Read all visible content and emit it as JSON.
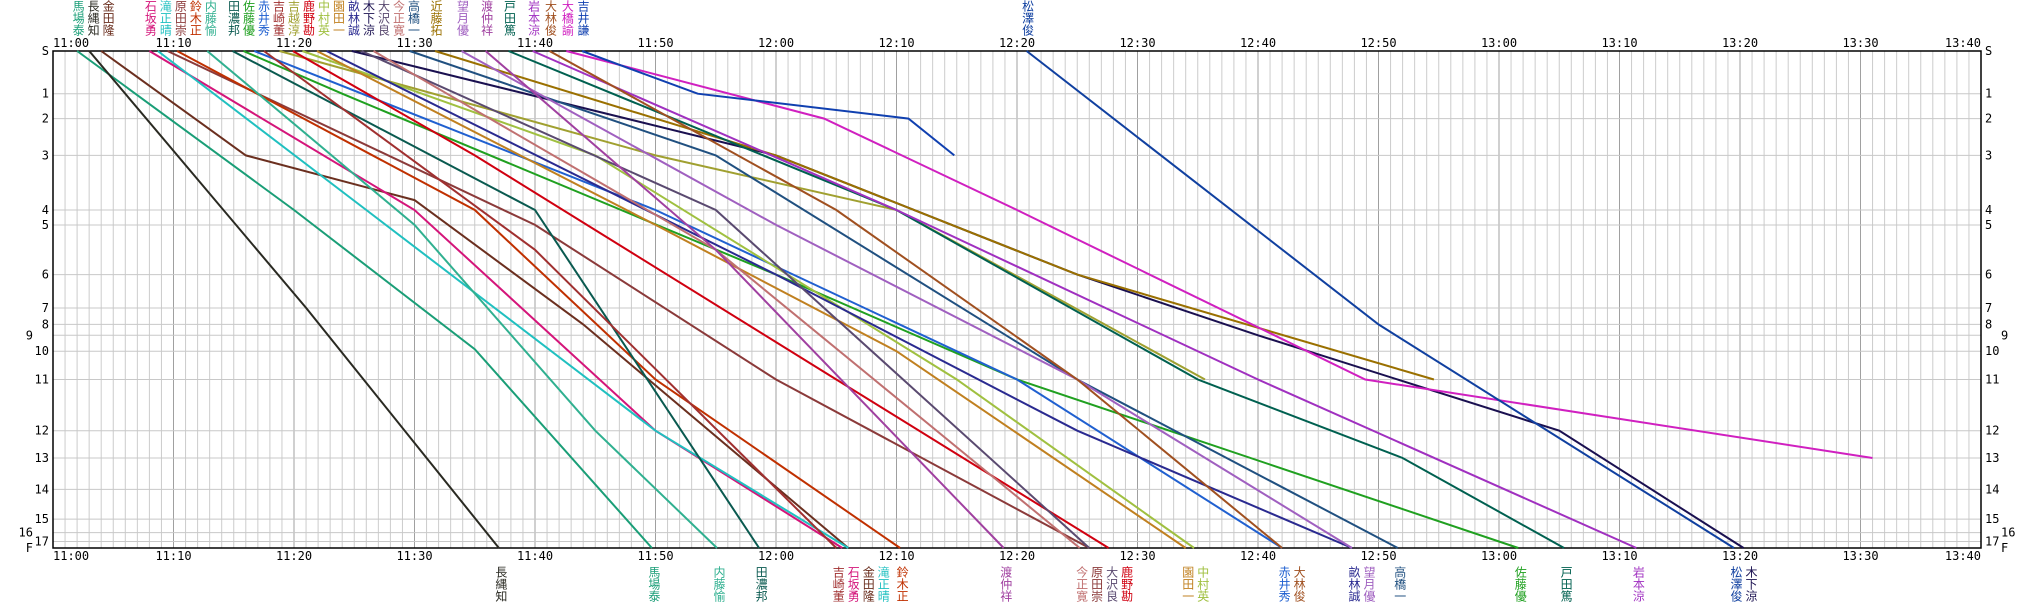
{
  "chart_data": {
    "type": "line",
    "title": "",
    "xlabel": "",
    "ylabel": "",
    "x_unit": "minutes after 11:00",
    "xlim": [
      0,
      160
    ],
    "x_ticks": [
      "11:00",
      "11:10",
      "11:20",
      "11:30",
      "11:40",
      "11:50",
      "12:00",
      "12:10",
      "12:20",
      "12:30",
      "12:40",
      "12:50",
      "13:00",
      "13:10",
      "13:20",
      "13:30",
      "13:40"
    ],
    "grid": true,
    "y_unit": "course position (% of total)",
    "stations": [
      {
        "label": "S",
        "pos": 0
      },
      {
        "label": "1",
        "pos": 8.6
      },
      {
        "label": "2",
        "pos": 13.6
      },
      {
        "label": "3",
        "pos": 21
      },
      {
        "label": "4",
        "pos": 32
      },
      {
        "label": "5",
        "pos": 35
      },
      {
        "label": "6",
        "pos": 45
      },
      {
        "label": "7",
        "pos": 51.7
      },
      {
        "label": "8",
        "pos": 55
      },
      {
        "label": "9",
        "pos": 57.2
      },
      {
        "label": "10",
        "pos": 60.4
      },
      {
        "label": "11",
        "pos": 66.1
      },
      {
        "label": "12",
        "pos": 76.4
      },
      {
        "label": "13",
        "pos": 81.9
      },
      {
        "label": "14",
        "pos": 88.2
      },
      {
        "label": "15",
        "pos": 94.2
      },
      {
        "label": "16",
        "pos": 96.9
      },
      {
        "label": "17",
        "pos": 98.7
      },
      {
        "label": "F",
        "pos": 100
      }
    ],
    "series": [
      {
        "name": "馬場泰",
        "color": "#1a9e77",
        "points": [
          [
            2,
            0
          ],
          [
            20,
            32
          ],
          [
            35,
            60
          ],
          [
            49.7,
            100
          ]
        ]
      },
      {
        "name": "長縄知",
        "color": "#2a2a22",
        "points": [
          [
            3,
            0
          ],
          [
            21,
            51.7
          ],
          [
            31,
            81.9
          ],
          [
            37,
            100
          ]
        ]
      },
      {
        "name": "金田隆",
        "color": "#6b2f1f",
        "points": [
          [
            4,
            0
          ],
          [
            16,
            21
          ],
          [
            30,
            30
          ],
          [
            44,
            55
          ],
          [
            66,
            100
          ]
        ]
      },
      {
        "name": "石坂勇",
        "color": "#d4157a",
        "points": [
          [
            8,
            0
          ],
          [
            30,
            32
          ],
          [
            50,
            76.4
          ],
          [
            65.5,
            100
          ]
        ]
      },
      {
        "name": "滝正晴",
        "color": "#20c0c0",
        "points": [
          [
            8.7,
            0
          ],
          [
            26,
            32
          ],
          [
            50,
            76.4
          ],
          [
            66,
            100
          ]
        ]
      },
      {
        "name": "原田崇",
        "color": "#8b3a3a",
        "points": [
          [
            9.5,
            0
          ],
          [
            40,
            35
          ],
          [
            60,
            66.1
          ],
          [
            86,
            100
          ]
        ]
      },
      {
        "name": "鈴木正",
        "color": "#c03000",
        "points": [
          [
            10.3,
            0
          ],
          [
            35,
            32
          ],
          [
            50,
            66.1
          ],
          [
            70.3,
            100
          ]
        ]
      },
      {
        "name": "内藤愉",
        "color": "#30b090",
        "points": [
          [
            12.8,
            0
          ],
          [
            30,
            35
          ],
          [
            45,
            76.4
          ],
          [
            55.1,
            100
          ]
        ]
      },
      {
        "name": "田濃邦",
        "color": "#0a5a50",
        "points": [
          [
            14.9,
            0
          ],
          [
            40,
            32
          ],
          [
            58.6,
            100
          ]
        ]
      },
      {
        "name": "佐藤優",
        "color": "#20a020",
        "points": [
          [
            15.8,
            0
          ],
          [
            24,
            8.6
          ],
          [
            60,
            45
          ],
          [
            80,
            66.1
          ],
          [
            121.6,
            100
          ]
        ]
      },
      {
        "name": "赤井秀",
        "color": "#2060d0",
        "points": [
          [
            16.7,
            0
          ],
          [
            50,
            32
          ],
          [
            80,
            66.1
          ],
          [
            102,
            100
          ]
        ]
      },
      {
        "name": "吉崎董",
        "color": "#a03030",
        "points": [
          [
            17.5,
            0
          ],
          [
            40,
            40
          ],
          [
            65,
            100
          ]
        ]
      },
      {
        "name": "吉越淳",
        "color": "#a0a030",
        "points": [
          [
            18.8,
            0
          ],
          [
            50,
            21
          ],
          [
            70,
            32
          ],
          [
            95.6,
            66.1
          ]
        ]
      },
      {
        "name": "鹿野勘",
        "color": "#d00010",
        "points": [
          [
            19.9,
            0
          ],
          [
            35,
            21
          ],
          [
            65,
            66.1
          ],
          [
            87.6,
            100
          ]
        ]
      },
      {
        "name": "中村英",
        "color": "#a0c040",
        "points": [
          [
            20.7,
            0
          ],
          [
            45,
            21
          ],
          [
            75,
            66.1
          ],
          [
            94.7,
            100
          ]
        ]
      },
      {
        "name": "園田一",
        "color": "#c08020",
        "points": [
          [
            21.9,
            0
          ],
          [
            50,
            35
          ],
          [
            70,
            60.4
          ],
          [
            94,
            100
          ]
        ]
      },
      {
        "name": "畝林誠",
        "color": "#2a2a90",
        "points": [
          [
            22.7,
            0
          ],
          [
            60,
            45
          ],
          [
            85,
            76.4
          ],
          [
            107.8,
            100
          ]
        ]
      },
      {
        "name": "木下涼",
        "color": "#1a1050",
        "points": [
          [
            24.8,
            0
          ],
          [
            60,
            21
          ],
          [
            85,
            45
          ],
          [
            100,
            57.2
          ],
          [
            125,
            76.4
          ],
          [
            140.3,
            100
          ]
        ]
      },
      {
        "name": "大沢良",
        "color": "#5a4a70",
        "points": [
          [
            25.6,
            0
          ],
          [
            55,
            32
          ],
          [
            86,
            100
          ]
        ]
      },
      {
        "name": "今正寛",
        "color": "#c07070",
        "points": [
          [
            26.6,
            0
          ],
          [
            55,
            40
          ],
          [
            85.2,
            100
          ]
        ]
      },
      {
        "name": "高橋一",
        "color": "#205080",
        "points": [
          [
            29.6,
            0
          ],
          [
            55,
            21
          ],
          [
            85,
            66.1
          ],
          [
            111.6,
            100
          ]
        ]
      },
      {
        "name": "近藤拓",
        "color": "#9a7000",
        "points": [
          [
            31.7,
            0
          ],
          [
            60,
            21
          ],
          [
            85,
            45
          ],
          [
            114.6,
            66.1
          ]
        ]
      },
      {
        "name": "望月優",
        "color": "#a060c0",
        "points": [
          [
            33.9,
            0
          ],
          [
            60,
            35
          ],
          [
            85,
            66.1
          ],
          [
            107.8,
            100
          ]
        ]
      },
      {
        "name": "渡仲祥",
        "color": "#a040a0",
        "points": [
          [
            35.9,
            0
          ],
          [
            55,
            40
          ],
          [
            78.9,
            100
          ]
        ]
      },
      {
        "name": "戸田篤",
        "color": "#006050",
        "points": [
          [
            37.8,
            0
          ],
          [
            70,
            32
          ],
          [
            95,
            66.1
          ],
          [
            112,
            81.9
          ],
          [
            125.4,
            100
          ]
        ]
      },
      {
        "name": "岩本涼",
        "color": "#a030c0",
        "points": [
          [
            39.8,
            0
          ],
          [
            70,
            32
          ],
          [
            100,
            66.1
          ],
          [
            131.4,
            100
          ]
        ]
      },
      {
        "name": "大林俊",
        "color": "#a05020",
        "points": [
          [
            41.2,
            0
          ],
          [
            65,
            32
          ],
          [
            85,
            66.1
          ],
          [
            102,
            100
          ]
        ]
      },
      {
        "name": "大橋諭",
        "color": "#d020c0",
        "points": [
          [
            42.6,
            0
          ],
          [
            64,
            13.6
          ],
          [
            80,
            32
          ],
          [
            108.9,
            66.1
          ],
          [
            151,
            81.9
          ]
        ]
      },
      {
        "name": "吉井謙",
        "color": "#1040b0",
        "points": [
          [
            43.9,
            0
          ],
          [
            53.5,
            8.6
          ],
          [
            71,
            13.6
          ],
          [
            74.8,
            21
          ]
        ]
      },
      {
        "name": "松澤俊",
        "color": "#1040a0",
        "points": [
          [
            80.8,
            0
          ],
          [
            110,
            55
          ],
          [
            139.5,
            100
          ]
        ]
      }
    ]
  }
}
